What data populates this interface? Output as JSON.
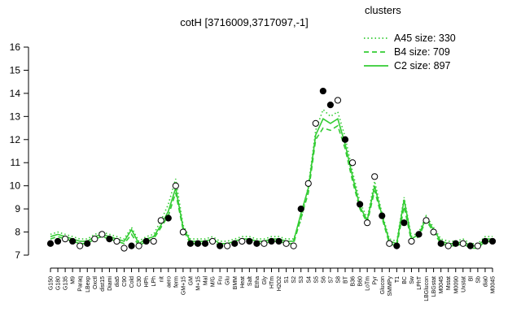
{
  "chart_data": {
    "type": "line",
    "title": "cotH [3716009,3717097,-1]",
    "legend_title": "clusters",
    "legend_color": "#33cc33",
    "ylim": [
      7,
      16
    ],
    "yticks": [
      7,
      8,
      9,
      10,
      11,
      12,
      13,
      14,
      15,
      16
    ],
    "categories": [
      "G150",
      "G180",
      "G135",
      "M9",
      "Paraq",
      "LBexp",
      "Oxctl",
      "dist15",
      "Diami",
      "dia5",
      "C90",
      "Cold",
      "C30",
      "HPh",
      "LPh",
      "nit",
      "aero",
      "ferm",
      "GM+15",
      "GM",
      "M+15",
      "Mal",
      "M/G",
      "Fru",
      "Glu",
      "BMM",
      "Heat",
      "Salt",
      "Etha",
      "Gly",
      "HTm",
      "H2O2",
      "S1",
      "S2",
      "S3",
      "S4",
      "S5",
      "S6",
      "S7",
      "S8",
      "BT",
      "B36",
      "B60",
      "LoTm",
      "Pyr",
      "Glucon",
      "SMMPy",
      "T1",
      "BC",
      "Sw",
      "LPhT",
      "LBGlucon",
      "LBGstat",
      "M0045",
      "Mstat",
      "M0090",
      "Uxstat",
      "Bl",
      "Sb",
      "dia0",
      "M0045"
    ],
    "points": {
      "values": [
        7.5,
        7.6,
        7.7,
        7.6,
        7.4,
        7.5,
        7.7,
        7.9,
        7.7,
        7.6,
        7.3,
        7.4,
        7.4,
        7.6,
        7.6,
        8.5,
        8.6,
        10.0,
        8.0,
        7.5,
        7.5,
        7.5,
        7.6,
        7.4,
        7.4,
        7.5,
        7.6,
        7.6,
        7.5,
        7.5,
        7.6,
        7.6,
        7.5,
        7.4,
        9.0,
        10.1,
        12.7,
        14.1,
        13.5,
        13.7,
        12.0,
        11.0,
        9.2,
        8.4,
        10.4,
        8.7,
        7.5,
        7.4,
        8.4,
        7.6,
        7.9,
        8.5,
        8.0,
        7.5,
        7.4,
        7.5,
        7.5,
        7.4,
        7.4,
        7.6,
        7.6
      ],
      "fills": [
        "#000",
        "#000",
        "#fff",
        "#000",
        "#fff",
        "#000",
        "#fff",
        "#fff",
        "#000",
        "#fff",
        "#fff",
        "#000",
        "#fff",
        "#000",
        "#fff",
        "#fff",
        "#000",
        "#fff",
        "#fff",
        "#000",
        "#000",
        "#000",
        "#fff",
        "#000",
        "#fff",
        "#000",
        "#fff",
        "#000",
        "#000",
        "#fff",
        "#000",
        "#000",
        "#fff",
        "#fff",
        "#000",
        "#fff",
        "#fff",
        "#000",
        "#000",
        "#fff",
        "#000",
        "#fff",
        "#000",
        "#fff",
        "#fff",
        "#000",
        "#fff",
        "#000",
        "#000",
        "#fff",
        "#000",
        "#fff",
        "#fff",
        "#000",
        "#fff",
        "#000",
        "#fff",
        "#000",
        "#fff",
        "#000",
        "#000"
      ]
    },
    "series": [
      {
        "name": "A45 size: 330",
        "color": "#33cc33",
        "linestyle": "dotted",
        "values": [
          7.9,
          8.0,
          7.9,
          7.8,
          7.7,
          7.7,
          7.9,
          8.0,
          7.9,
          7.8,
          7.7,
          8.2,
          7.6,
          7.8,
          7.9,
          8.5,
          9.2,
          10.3,
          8.3,
          7.7,
          7.7,
          7.7,
          7.8,
          7.6,
          7.6,
          7.7,
          7.8,
          7.8,
          7.7,
          7.7,
          7.8,
          7.8,
          7.7,
          7.7,
          8.5,
          10.0,
          12.4,
          13.3,
          13.0,
          13.2,
          12.1,
          10.6,
          9.3,
          8.6,
          10.2,
          8.8,
          7.7,
          7.6,
          9.5,
          7.8,
          8.0,
          8.7,
          8.2,
          7.7,
          7.6,
          7.6,
          7.7,
          7.5,
          7.5,
          7.8,
          7.8
        ]
      },
      {
        "name": "B4 size: 709",
        "color": "#33cc33",
        "linestyle": "dashed",
        "values": [
          7.7,
          7.8,
          7.7,
          7.6,
          7.5,
          7.5,
          7.7,
          7.8,
          7.7,
          7.6,
          7.5,
          7.9,
          7.4,
          7.6,
          7.7,
          8.2,
          8.7,
          9.7,
          8.1,
          7.5,
          7.5,
          7.5,
          7.6,
          7.4,
          7.4,
          7.5,
          7.6,
          7.6,
          7.5,
          7.5,
          7.6,
          7.6,
          7.5,
          7.5,
          8.6,
          9.7,
          12.0,
          12.5,
          12.4,
          12.6,
          11.6,
          10.2,
          9.0,
          8.4,
          9.8,
          8.6,
          7.5,
          7.4,
          9.1,
          7.6,
          7.8,
          8.5,
          8.0,
          7.5,
          7.4,
          7.4,
          7.5,
          7.3,
          7.3,
          7.6,
          7.6
        ]
      },
      {
        "name": "C2 size: 897",
        "color": "#33cc33",
        "linestyle": "solid",
        "values": [
          7.8,
          7.9,
          7.8,
          7.7,
          7.6,
          7.6,
          7.8,
          7.9,
          7.8,
          7.7,
          7.6,
          8.1,
          7.5,
          7.7,
          7.8,
          8.3,
          8.9,
          9.9,
          8.2,
          7.6,
          7.6,
          7.6,
          7.7,
          7.5,
          7.5,
          7.6,
          7.7,
          7.7,
          7.6,
          7.6,
          7.7,
          7.7,
          7.6,
          7.6,
          8.8,
          9.9,
          12.2,
          12.9,
          12.7,
          12.9,
          11.8,
          10.4,
          9.1,
          8.5,
          10.0,
          8.7,
          7.6,
          7.5,
          9.4,
          7.7,
          7.9,
          8.6,
          8.1,
          7.6,
          7.5,
          7.5,
          7.6,
          7.4,
          7.4,
          7.7,
          7.7
        ]
      }
    ]
  }
}
